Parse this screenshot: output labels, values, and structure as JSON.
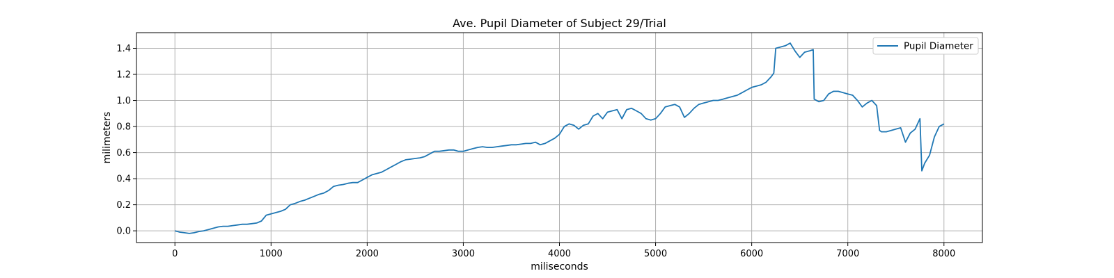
{
  "chart_data": {
    "type": "line",
    "title": "Ave. Pupil Diameter of Subject 29/Trial",
    "xlabel": "miliseconds",
    "ylabel": "milimeters",
    "xlim": [
      -400,
      8400
    ],
    "ylim": [
      -0.09,
      1.52
    ],
    "xticks": [
      0,
      1000,
      2000,
      3000,
      4000,
      5000,
      6000,
      7000,
      8000
    ],
    "xtick_labels": [
      "0",
      "1000",
      "2000",
      "3000",
      "4000",
      "5000",
      "6000",
      "7000",
      "8000"
    ],
    "yticks": [
      0.0,
      0.2,
      0.4,
      0.6,
      0.8,
      1.0,
      1.2,
      1.4
    ],
    "ytick_labels": [
      "0.0",
      "0.2",
      "0.4",
      "0.6",
      "0.8",
      "1.0",
      "1.2",
      "1.4"
    ],
    "grid": true,
    "legend_position": "top-right",
    "series": [
      {
        "name": "Pupil Diameter",
        "color": "#1f77b4",
        "x": [
          0,
          50,
          100,
          150,
          200,
          250,
          300,
          350,
          400,
          450,
          500,
          550,
          600,
          650,
          700,
          750,
          800,
          850,
          900,
          950,
          1000,
          1050,
          1100,
          1150,
          1200,
          1250,
          1300,
          1350,
          1400,
          1450,
          1500,
          1550,
          1600,
          1650,
          1700,
          1750,
          1800,
          1850,
          1900,
          1950,
          2000,
          2050,
          2100,
          2150,
          2200,
          2250,
          2300,
          2350,
          2400,
          2450,
          2500,
          2550,
          2600,
          2650,
          2700,
          2750,
          2800,
          2850,
          2900,
          2950,
          3000,
          3050,
          3100,
          3150,
          3200,
          3250,
          3300,
          3350,
          3400,
          3450,
          3500,
          3550,
          3600,
          3650,
          3700,
          3750,
          3800,
          3850,
          3900,
          3950,
          4000,
          4050,
          4100,
          4150,
          4200,
          4250,
          4300,
          4350,
          4400,
          4450,
          4500,
          4550,
          4600,
          4650,
          4700,
          4750,
          4800,
          4850,
          4900,
          4950,
          5000,
          5050,
          5100,
          5150,
          5200,
          5250,
          5300,
          5350,
          5400,
          5450,
          5500,
          5550,
          5600,
          5650,
          5700,
          5750,
          5800,
          5850,
          5900,
          5950,
          6000,
          6050,
          6100,
          6150,
          6200,
          6230,
          6250,
          6300,
          6350,
          6400,
          6450,
          6500,
          6550,
          6600,
          6640,
          6650,
          6700,
          6750,
          6800,
          6850,
          6900,
          6950,
          7000,
          7050,
          7100,
          7150,
          7200,
          7250,
          7300,
          7330,
          7350,
          7400,
          7450,
          7500,
          7550,
          7600,
          7650,
          7700,
          7750,
          7770,
          7780,
          7800,
          7850,
          7900,
          7950,
          8000
        ],
        "y": [
          0.0,
          -0.01,
          -0.015,
          -0.02,
          -0.015,
          -0.005,
          0.0,
          0.01,
          0.02,
          0.03,
          0.035,
          0.035,
          0.04,
          0.045,
          0.05,
          0.05,
          0.055,
          0.06,
          0.075,
          0.12,
          0.13,
          0.14,
          0.15,
          0.165,
          0.2,
          0.21,
          0.225,
          0.235,
          0.25,
          0.265,
          0.28,
          0.29,
          0.31,
          0.34,
          0.35,
          0.355,
          0.365,
          0.37,
          0.37,
          0.39,
          0.41,
          0.43,
          0.44,
          0.45,
          0.47,
          0.49,
          0.51,
          0.53,
          0.545,
          0.55,
          0.555,
          0.56,
          0.57,
          0.59,
          0.61,
          0.61,
          0.615,
          0.62,
          0.62,
          0.61,
          0.61,
          0.62,
          0.63,
          0.64,
          0.645,
          0.64,
          0.64,
          0.645,
          0.65,
          0.655,
          0.66,
          0.66,
          0.665,
          0.67,
          0.67,
          0.68,
          0.66,
          0.67,
          0.69,
          0.71,
          0.74,
          0.8,
          0.82,
          0.81,
          0.78,
          0.81,
          0.82,
          0.88,
          0.9,
          0.86,
          0.91,
          0.92,
          0.93,
          0.86,
          0.93,
          0.94,
          0.92,
          0.9,
          0.86,
          0.85,
          0.86,
          0.9,
          0.95,
          0.96,
          0.97,
          0.95,
          0.87,
          0.9,
          0.94,
          0.97,
          0.98,
          0.99,
          1.0,
          1.0,
          1.01,
          1.02,
          1.03,
          1.04,
          1.06,
          1.08,
          1.1,
          1.11,
          1.12,
          1.14,
          1.18,
          1.21,
          1.4,
          1.41,
          1.42,
          1.44,
          1.38,
          1.33,
          1.37,
          1.38,
          1.39,
          1.01,
          0.99,
          1.0,
          1.05,
          1.07,
          1.07,
          1.06,
          1.05,
          1.04,
          1.0,
          0.95,
          0.98,
          1.0,
          0.96,
          0.77,
          0.76,
          0.76,
          0.77,
          0.78,
          0.79,
          0.68,
          0.75,
          0.78,
          0.86,
          0.46,
          0.48,
          0.52,
          0.58,
          0.72,
          0.8,
          0.82
        ]
      }
    ]
  }
}
